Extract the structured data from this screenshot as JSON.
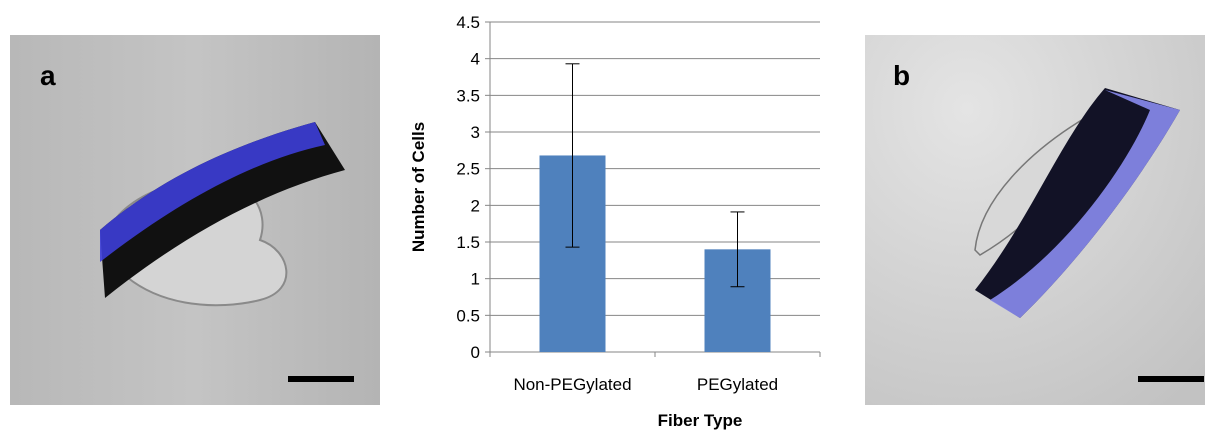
{
  "panels": [
    {
      "label": "a"
    },
    {
      "label": "b"
    }
  ],
  "chart_data": {
    "type": "bar",
    "categories": [
      "Non-PEGylated",
      "PEGylated"
    ],
    "values": [
      2.68,
      1.4
    ],
    "errors": [
      1.25,
      0.51
    ],
    "color": "#4f81bd",
    "ylim": [
      0,
      4.5
    ],
    "yticks": [
      0,
      0.5,
      1,
      1.5,
      2,
      2.5,
      3,
      3.5,
      4,
      4.5
    ],
    "grid": true,
    "xlabel": "Fiber Type",
    "ylabel": "Number of Cells"
  }
}
